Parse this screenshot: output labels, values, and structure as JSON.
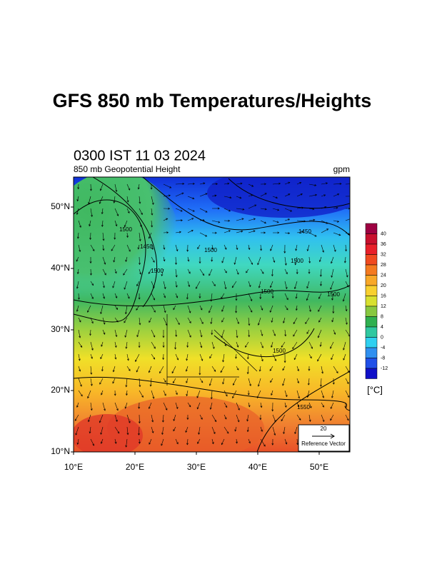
{
  "header": {
    "title": "GFS 850 mb Temperatures/Heights"
  },
  "map": {
    "time": "0300 IST 11 03 2024",
    "field": "850 mb Geopotential Height",
    "units": "gpm",
    "lat_labels": [
      "50°N",
      "40°N",
      "30°N",
      "20°N",
      "10°N"
    ],
    "lon_labels": [
      "10°E",
      "20°E",
      "30°E",
      "40°E",
      "50°E"
    ],
    "contour_labels": [
      "1500",
      "1450",
      "1500",
      "1500",
      "1450",
      "1500",
      "1500",
      "1500",
      "1500",
      "1550"
    ],
    "reference_vector": {
      "magnitude": "20",
      "label": "Reference Vector"
    }
  },
  "colorbar": {
    "labels": [
      40,
      36,
      32,
      28,
      24,
      20,
      16,
      12,
      8,
      4,
      0,
      -4,
      -8,
      -12
    ],
    "colors": [
      "#9e0142",
      "#c8102e",
      "#e8202a",
      "#f04a20",
      "#f47a20",
      "#f8a828",
      "#f8d030",
      "#d8e030",
      "#88c840",
      "#30b050",
      "#30c8a0",
      "#30d0f0",
      "#3090f0",
      "#2050e8",
      "#1010c8"
    ],
    "unit": "[°C]"
  }
}
